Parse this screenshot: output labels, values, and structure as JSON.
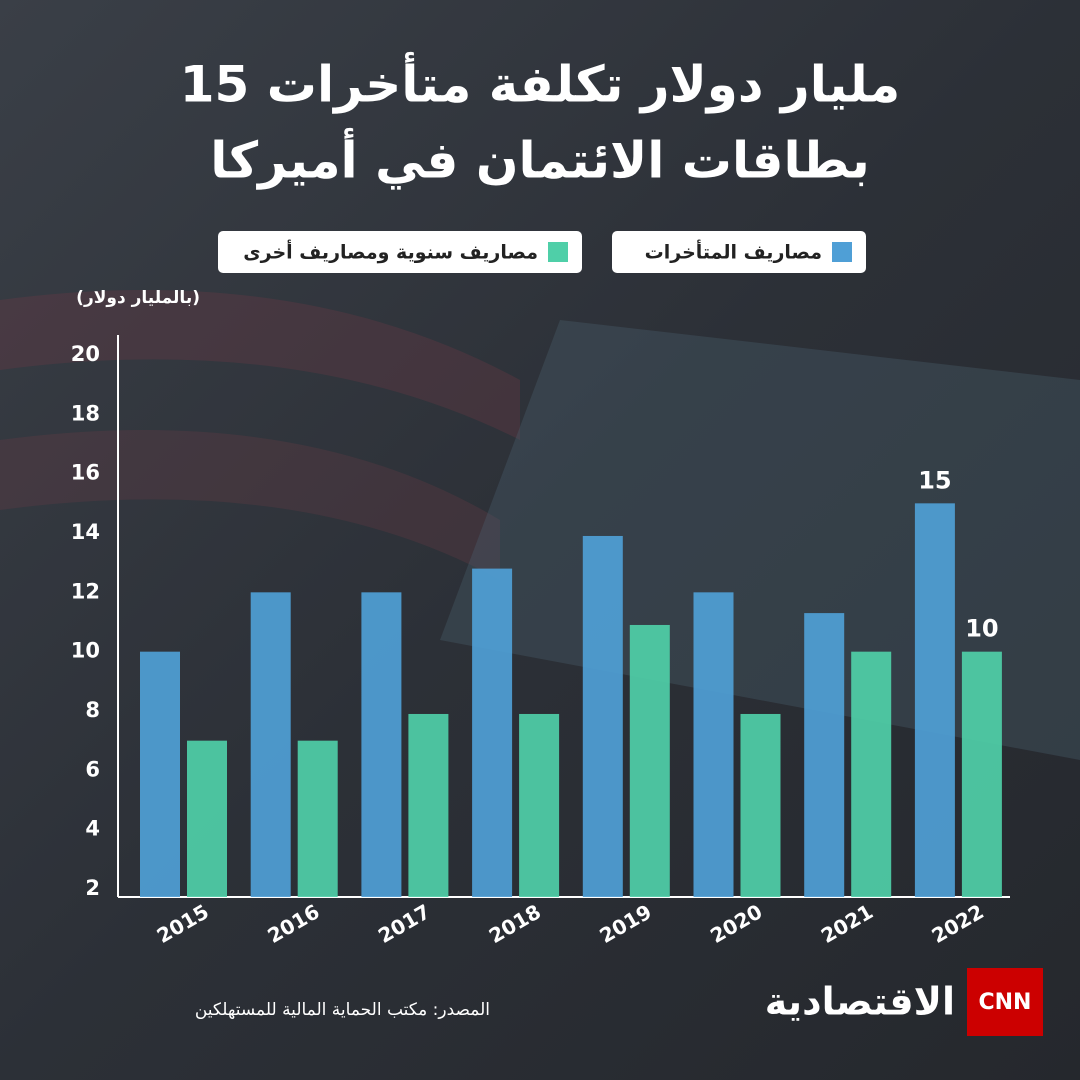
{
  "chart_data": {
    "type": "bar",
    "title": [
      "15 مليار دولار تكلفة متأخرات",
      "بطاقات الائتمان في أميركا"
    ],
    "y_label": "(بالمليار دولار)",
    "categories": [
      "2015",
      "2016",
      "2017",
      "2018",
      "2019",
      "2020",
      "2021",
      "2022"
    ],
    "series": [
      {
        "name": "مصاريف المتأخرات",
        "color": "#4f9fd6",
        "values": [
          10,
          12,
          12,
          12.8,
          13.9,
          12,
          11.3,
          15
        ]
      },
      {
        "name": "مصاريف سنوية ومصاريف أخرى",
        "color": "#4fcfa8",
        "values": [
          7,
          7,
          7.9,
          7.9,
          10.9,
          7.9,
          10,
          10
        ]
      }
    ],
    "ylim": [
      2,
      20
    ],
    "yticks": [
      2,
      4,
      6,
      8,
      10,
      12,
      14,
      16,
      18,
      20
    ],
    "source": "المصدر: مكتب الحماية المالية للمستهلكين",
    "logo": {
      "brand": "CNN",
      "name": "الاقتصادية"
    }
  }
}
